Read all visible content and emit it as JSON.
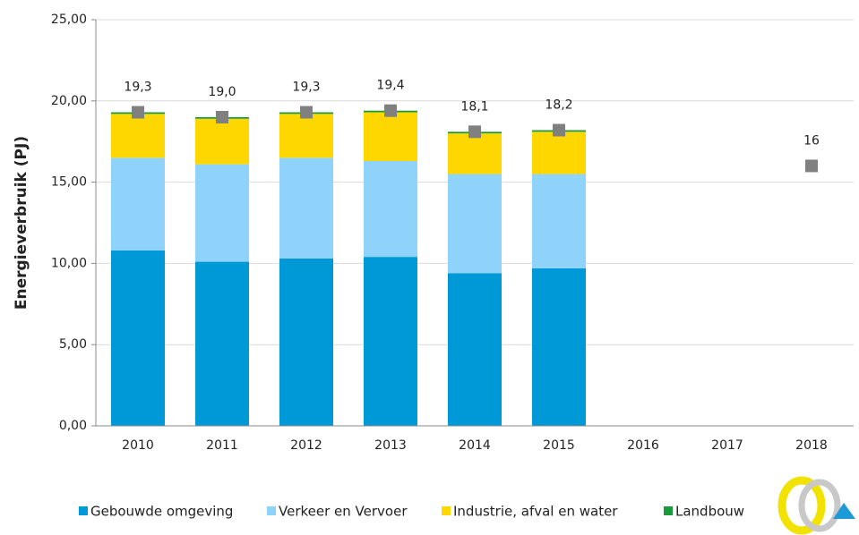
{
  "chart_data": {
    "type": "stacked_bar",
    "y_label": "Energieverbruik (PJ)",
    "categories": [
      "2010",
      "2011",
      "2012",
      "2013",
      "2014",
      "2015",
      "2016",
      "2017",
      "2018"
    ],
    "series": [
      {
        "name": "Gebouwde omgeving",
        "color": "#0099d8",
        "values": [
          10.8,
          10.1,
          10.3,
          10.4,
          9.4,
          9.7,
          null,
          null,
          null
        ]
      },
      {
        "name": "Verkeer en Vervoer",
        "color": "#8fd3fb",
        "values": [
          5.7,
          6.0,
          6.2,
          5.9,
          6.1,
          5.8,
          null,
          null,
          null
        ]
      },
      {
        "name": "Industrie, afval en water",
        "color": "#ffd700",
        "values": [
          2.7,
          2.8,
          2.7,
          3.0,
          2.5,
          2.6,
          null,
          null,
          null
        ]
      },
      {
        "name": "Landbouw",
        "color": "#1a9a3a",
        "values": [
          0.1,
          0.1,
          0.1,
          0.1,
          0.1,
          0.1,
          null,
          null,
          null
        ]
      }
    ],
    "totals": {
      "color": "#808080",
      "values": [
        19.3,
        19.0,
        19.3,
        19.4,
        18.1,
        18.2,
        null,
        null,
        16
      ],
      "value_labels": [
        "19,3",
        "19,0",
        "19,3",
        "19,4",
        "18,1",
        "18,2",
        null,
        null,
        "16"
      ]
    },
    "ylim": [
      0,
      25
    ],
    "yticks": [
      {
        "value": 0,
        "label": "0,00"
      },
      {
        "value": 5,
        "label": "5,00"
      },
      {
        "value": 10,
        "label": "10,00"
      },
      {
        "value": 15,
        "label": "15,00"
      },
      {
        "value": 20,
        "label": "20,00"
      },
      {
        "value": 25,
        "label": "25,00"
      }
    ],
    "grid": true
  }
}
